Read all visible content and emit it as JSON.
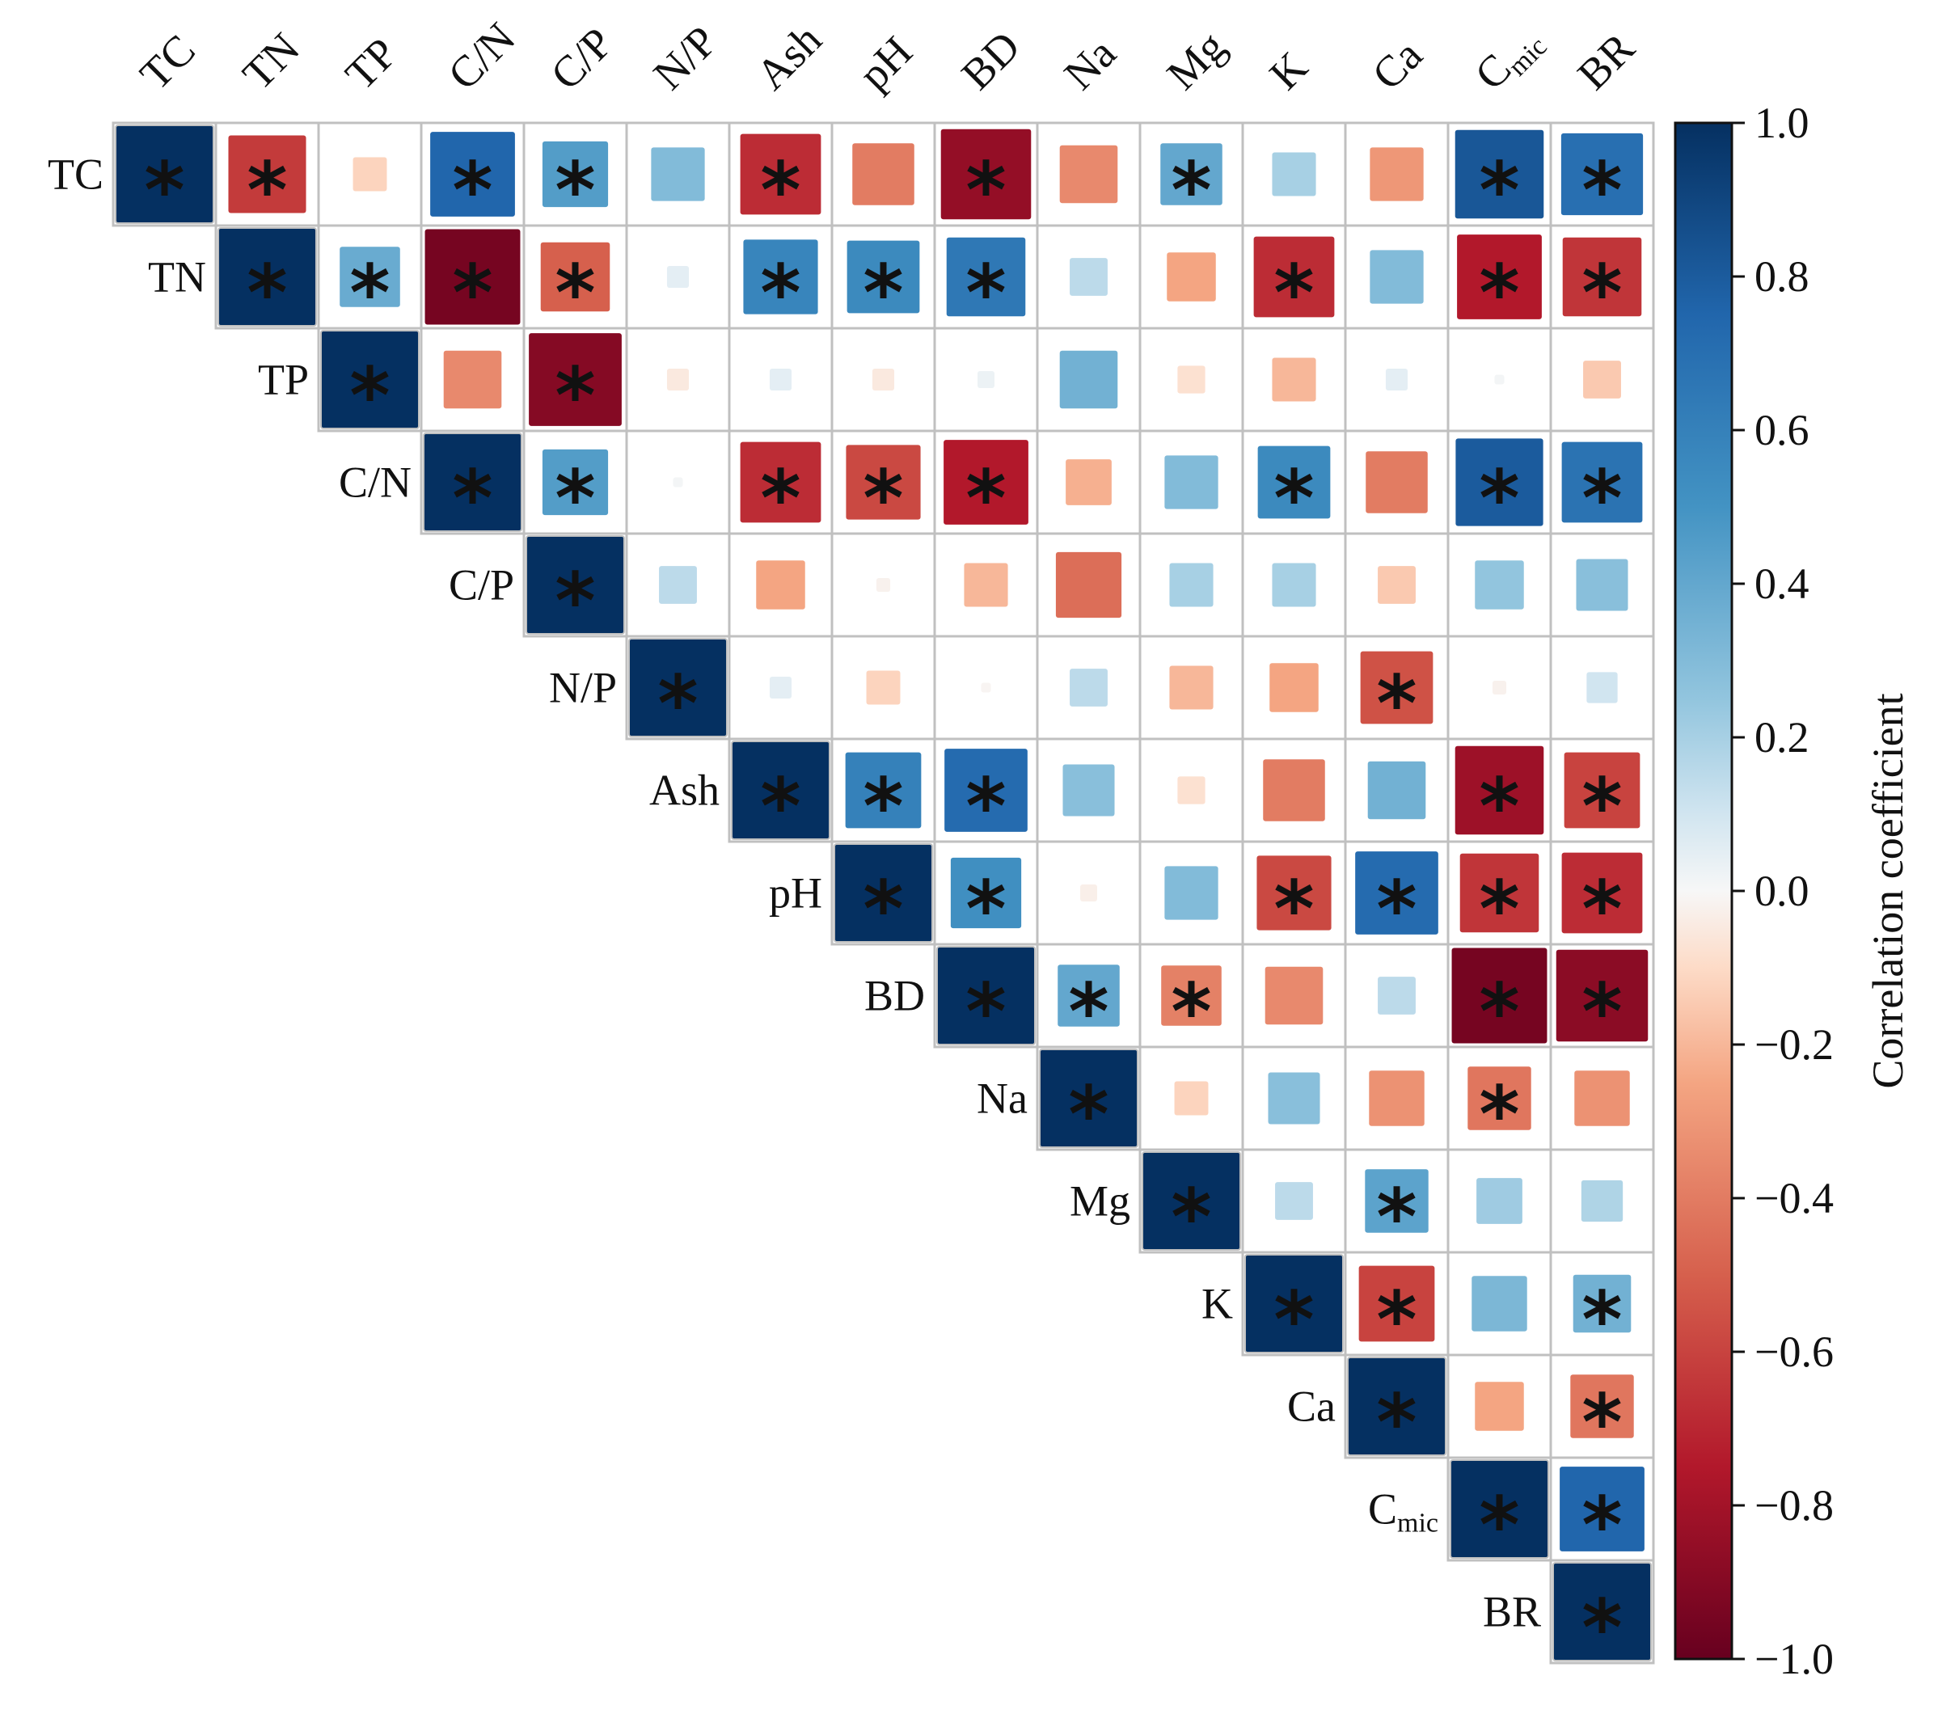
{
  "chart_data": {
    "type": "heatmap",
    "variables": [
      "TC",
      "TN",
      "TP",
      "C/N",
      "C/P",
      "N/P",
      "Ash",
      "pH",
      "BD",
      "Na",
      "Mg",
      "K",
      "Ca",
      "C_mic",
      "BR"
    ],
    "labels": [
      {
        "text": "TC"
      },
      {
        "text": "TN"
      },
      {
        "text": "TP"
      },
      {
        "text": "C/N"
      },
      {
        "text": "C/P"
      },
      {
        "text": "N/P"
      },
      {
        "text": "Ash"
      },
      {
        "text": "pH"
      },
      {
        "text": "BD"
      },
      {
        "text": "Na"
      },
      {
        "text": "Mg"
      },
      {
        "text": "K"
      },
      {
        "text": "Ca"
      },
      {
        "text": "C",
        "sub": "mic"
      },
      {
        "text": "BR"
      }
    ],
    "layout": "upper-triangle",
    "matrix": [
      [
        1.0,
        -0.63,
        -0.12,
        0.75,
        0.45,
        0.3,
        -0.68,
        -0.4,
        -0.85,
        -0.35,
        0.4,
        0.2,
        -0.3,
        0.82,
        0.7
      ],
      [
        null,
        1.0,
        0.38,
        -0.95,
        -0.5,
        0.05,
        0.58,
        0.55,
        0.65,
        0.15,
        -0.25,
        -0.68,
        0.3,
        -0.75,
        -0.65
      ],
      [
        null,
        null,
        1.0,
        -0.35,
        -0.9,
        -0.05,
        0.05,
        -0.05,
        0.03,
        0.35,
        -0.08,
        -0.2,
        0.05,
        0.01,
        -0.15
      ],
      [
        null,
        null,
        null,
        1.0,
        0.45,
        0.01,
        -0.68,
        -0.58,
        -0.75,
        -0.22,
        0.3,
        0.55,
        -0.4,
        0.8,
        0.68
      ],
      [
        null,
        null,
        null,
        null,
        1.0,
        0.15,
        -0.25,
        -0.02,
        -0.2,
        -0.45,
        0.2,
        0.2,
        -0.15,
        0.25,
        0.28
      ],
      [
        null,
        null,
        null,
        null,
        null,
        1.0,
        0.05,
        -0.12,
        -0.01,
        0.15,
        -0.2,
        -0.25,
        -0.55,
        -0.02,
        0.1
      ],
      [
        null,
        null,
        null,
        null,
        null,
        null,
        1.0,
        0.6,
        0.72,
        0.28,
        -0.08,
        -0.4,
        0.35,
        -0.82,
        -0.6
      ],
      [
        null,
        null,
        null,
        null,
        null,
        null,
        null,
        1.0,
        0.52,
        -0.03,
        0.3,
        -0.58,
        0.72,
        -0.65,
        -0.68
      ],
      [
        null,
        null,
        null,
        null,
        null,
        null,
        null,
        null,
        1.0,
        0.4,
        -0.38,
        -0.35,
        0.15,
        -0.95,
        -0.88
      ],
      [
        null,
        null,
        null,
        null,
        null,
        null,
        null,
        null,
        null,
        1.0,
        -0.12,
        0.28,
        -0.32,
        -0.42,
        -0.32
      ],
      [
        null,
        null,
        null,
        null,
        null,
        null,
        null,
        null,
        null,
        null,
        1.0,
        0.15,
        0.42,
        0.22,
        0.18
      ],
      [
        null,
        null,
        null,
        null,
        null,
        null,
        null,
        null,
        null,
        null,
        null,
        1.0,
        -0.6,
        0.32,
        0.35
      ],
      [
        null,
        null,
        null,
        null,
        null,
        null,
        null,
        null,
        null,
        null,
        null,
        null,
        1.0,
        -0.25,
        -0.42
      ],
      [
        null,
        null,
        null,
        null,
        null,
        null,
        null,
        null,
        null,
        null,
        null,
        null,
        null,
        1.0,
        0.75
      ],
      [
        null,
        null,
        null,
        null,
        null,
        null,
        null,
        null,
        null,
        null,
        null,
        null,
        null,
        null,
        1.0
      ]
    ],
    "significant": [
      [
        1,
        1,
        0,
        1,
        1,
        0,
        1,
        0,
        1,
        0,
        1,
        0,
        0,
        1,
        1
      ],
      [
        0,
        1,
        1,
        1,
        1,
        0,
        1,
        1,
        1,
        0,
        0,
        1,
        0,
        1,
        1
      ],
      [
        0,
        0,
        1,
        0,
        1,
        0,
        0,
        0,
        0,
        0,
        0,
        0,
        0,
        0,
        0
      ],
      [
        0,
        0,
        0,
        1,
        1,
        0,
        1,
        1,
        1,
        0,
        0,
        1,
        0,
        1,
        1
      ],
      [
        0,
        0,
        0,
        0,
        1,
        0,
        0,
        0,
        0,
        0,
        0,
        0,
        0,
        0,
        0
      ],
      [
        0,
        0,
        0,
        0,
        0,
        1,
        0,
        0,
        0,
        0,
        0,
        0,
        1,
        0,
        0
      ],
      [
        0,
        0,
        0,
        0,
        0,
        0,
        1,
        1,
        1,
        0,
        0,
        0,
        0,
        1,
        1
      ],
      [
        0,
        0,
        0,
        0,
        0,
        0,
        0,
        1,
        1,
        0,
        0,
        1,
        1,
        1,
        1
      ],
      [
        0,
        0,
        0,
        0,
        0,
        0,
        0,
        0,
        1,
        1,
        1,
        0,
        0,
        1,
        1
      ],
      [
        0,
        0,
        0,
        0,
        0,
        0,
        0,
        0,
        0,
        1,
        0,
        0,
        0,
        1,
        0
      ],
      [
        0,
        0,
        0,
        0,
        0,
        0,
        0,
        0,
        0,
        0,
        1,
        0,
        1,
        0,
        0
      ],
      [
        0,
        0,
        0,
        0,
        0,
        0,
        0,
        0,
        0,
        0,
        0,
        1,
        1,
        0,
        1
      ],
      [
        0,
        0,
        0,
        0,
        0,
        0,
        0,
        0,
        0,
        0,
        0,
        0,
        1,
        0,
        1
      ],
      [
        0,
        0,
        0,
        0,
        0,
        0,
        0,
        0,
        0,
        0,
        0,
        0,
        0,
        1,
        1
      ],
      [
        0,
        0,
        0,
        0,
        0,
        0,
        0,
        0,
        0,
        0,
        0,
        0,
        0,
        0,
        1
      ]
    ],
    "significance_marker": "*",
    "color_scale": {
      "label": "Correlation coefficient",
      "min": -1.0,
      "max": 1.0,
      "ticks": [
        1.0,
        0.8,
        0.6,
        0.4,
        0.2,
        0.0,
        -0.2,
        -0.4,
        -0.6,
        -0.8,
        -1.0
      ],
      "tick_labels": [
        "1.0",
        "0.8",
        "0.6",
        "0.4",
        "0.2",
        "0.0",
        "−0.2",
        "−0.4",
        "−0.6",
        "−0.8",
        "−1.0"
      ],
      "stops": [
        {
          "value": -1.0,
          "color": "#67001f"
        },
        {
          "value": -0.75,
          "color": "#b2182b"
        },
        {
          "value": -0.5,
          "color": "#d6604d"
        },
        {
          "value": -0.25,
          "color": "#f4a582"
        },
        {
          "value": -0.1,
          "color": "#fddbc7"
        },
        {
          "value": 0.0,
          "color": "#f7f7f7"
        },
        {
          "value": 0.1,
          "color": "#d1e5f0"
        },
        {
          "value": 0.25,
          "color": "#92c5de"
        },
        {
          "value": 0.5,
          "color": "#4393c3"
        },
        {
          "value": 0.75,
          "color": "#2166ac"
        },
        {
          "value": 1.0,
          "color": "#053061"
        }
      ]
    },
    "grid_color": "#c0c0c0"
  }
}
